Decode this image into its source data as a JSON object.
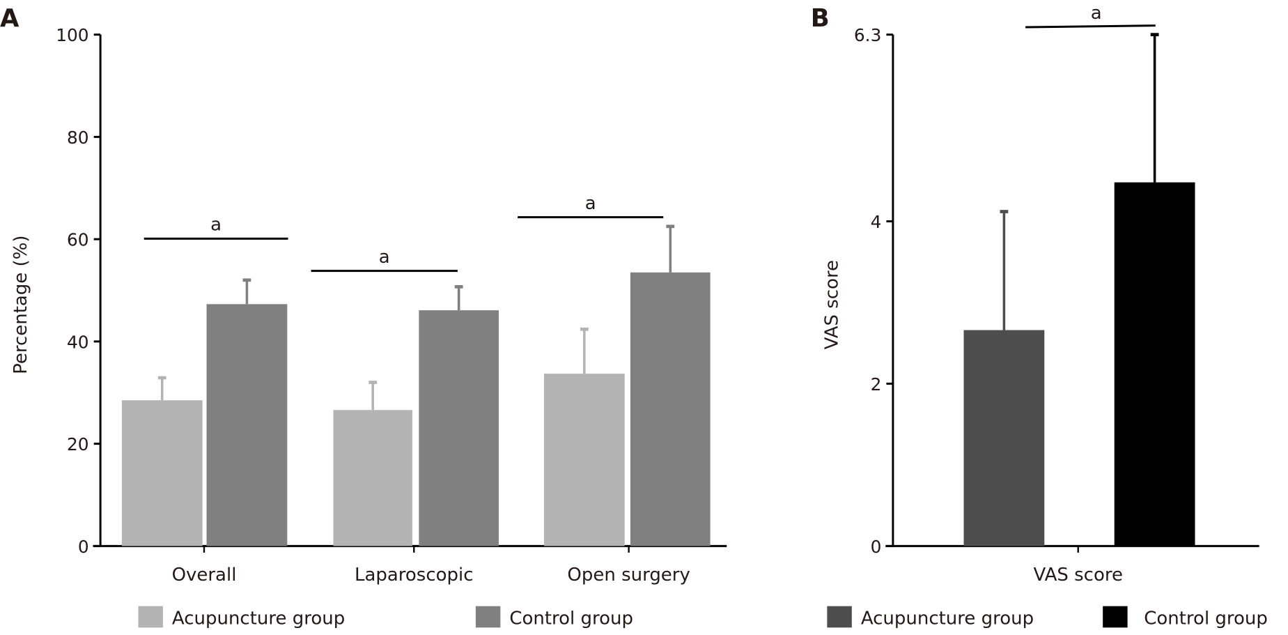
{
  "chart_data": [
    {
      "panel": "A",
      "type": "bar",
      "ylabel": "Percentage (%)",
      "xlabel": "",
      "ylim": [
        0,
        100
      ],
      "yticks": [
        "0",
        "20",
        "40",
        "60",
        "80",
        "100"
      ],
      "categories": [
        "Overall",
        "Laparoscopic",
        "Open surgery"
      ],
      "series": [
        {
          "name": "Acupuncture group",
          "color": "#b3b3b3",
          "values": [
            28.5,
            26.6,
            33.7
          ],
          "error_upper": [
            32.9,
            32.0,
            42.4
          ]
        },
        {
          "name": "Control group",
          "color": "#808080",
          "values": [
            47.3,
            46.1,
            53.5
          ],
          "error_upper": [
            52.0,
            50.7,
            62.5
          ]
        }
      ],
      "significance": [
        {
          "category": "Overall",
          "label": "a",
          "level": 60.1
        },
        {
          "category": "Laparoscopic",
          "label": "a",
          "level": 53.8
        },
        {
          "category": "Open surgery",
          "label": "a",
          "level": 64.3
        }
      ],
      "legend": "bottom",
      "grid": false
    },
    {
      "panel": "B",
      "type": "bar",
      "ylabel": "VAS score",
      "xlabel": "",
      "ylim": [
        0,
        6.3
      ],
      "yticks": [
        "0",
        "2",
        "4",
        "6.3"
      ],
      "categories": [
        "VAS score"
      ],
      "series": [
        {
          "name": "Acupuncture group",
          "color": "#4d4d4d",
          "values": [
            2.66
          ],
          "error_upper": [
            4.12
          ]
        },
        {
          "name": "Control group",
          "color": "#000000",
          "values": [
            4.48
          ],
          "error_upper": [
            6.3
          ]
        }
      ],
      "significance": [
        {
          "category": "VAS score",
          "label": "a",
          "level": 6.5
        }
      ],
      "legend": "bottom",
      "grid": false
    }
  ]
}
